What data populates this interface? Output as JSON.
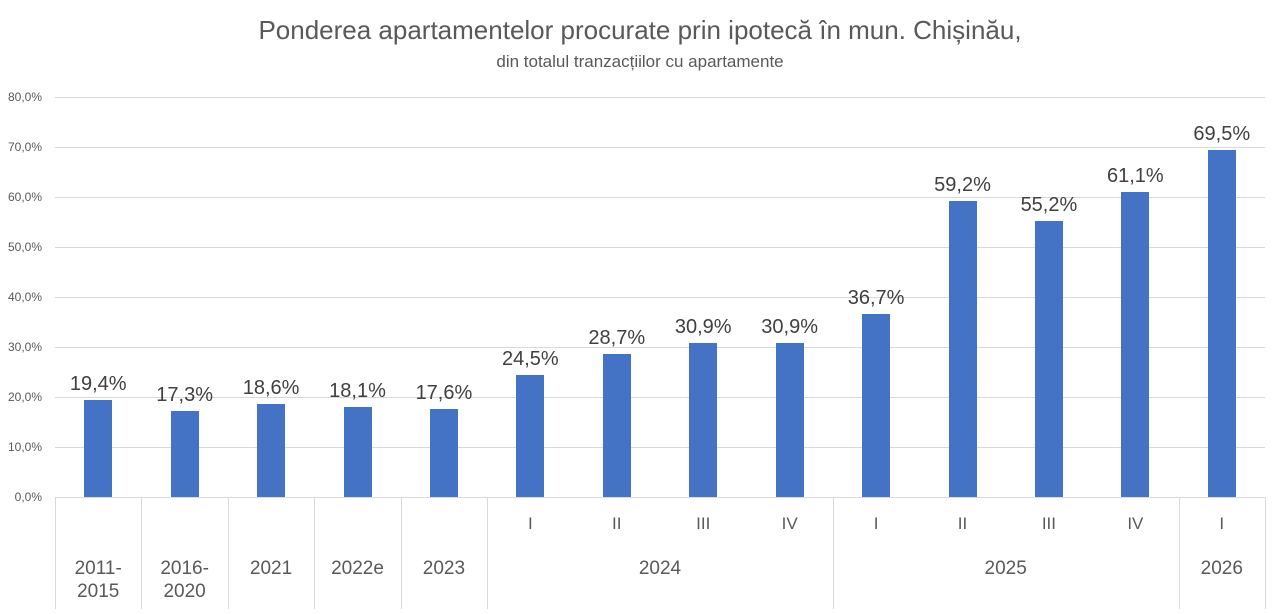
{
  "chart_data": {
    "type": "bar",
    "title": "Ponderea apartamentelor procurate prin ipotecă în mun. Chișinău,",
    "subtitle": "din totalul tranzacțiilor cu apartamente",
    "xlabel": "",
    "ylabel": "",
    "ylim": [
      0,
      80
    ],
    "grid": true,
    "legend_position": "none",
    "y_ticks": [
      {
        "value": 0,
        "label": "0,0%"
      },
      {
        "value": 10,
        "label": "10,0%"
      },
      {
        "value": 20,
        "label": "20,0%"
      },
      {
        "value": 30,
        "label": "30,0%"
      },
      {
        "value": 40,
        "label": "40,0%"
      },
      {
        "value": 50,
        "label": "50,0%"
      },
      {
        "value": 60,
        "label": "60,0%"
      },
      {
        "value": 70,
        "label": "70,0%"
      },
      {
        "value": 80,
        "label": "80,0%"
      }
    ],
    "bars": [
      {
        "period": "2011-2015",
        "quarter": "",
        "value": 19.4,
        "label": "19,4%"
      },
      {
        "period": "2016-2020",
        "quarter": "",
        "value": 17.3,
        "label": "17,3%"
      },
      {
        "period": "2021",
        "quarter": "",
        "value": 18.6,
        "label": "18,6%"
      },
      {
        "period": "2022e",
        "quarter": "",
        "value": 18.1,
        "label": "18,1%"
      },
      {
        "period": "2023",
        "quarter": "",
        "value": 17.6,
        "label": "17,6%"
      },
      {
        "period": "2024",
        "quarter": "I",
        "value": 24.5,
        "label": "24,5%"
      },
      {
        "period": "2024",
        "quarter": "II",
        "value": 28.7,
        "label": "28,7%"
      },
      {
        "period": "2024",
        "quarter": "III",
        "value": 30.9,
        "label": "30,9%"
      },
      {
        "period": "2024",
        "quarter": "IV",
        "value": 30.9,
        "label": "30,9%"
      },
      {
        "period": "2025",
        "quarter": "I",
        "value": 36.7,
        "label": "36,7%"
      },
      {
        "period": "2025",
        "quarter": "II",
        "value": 59.2,
        "label": "59,2%"
      },
      {
        "period": "2025",
        "quarter": "III",
        "value": 55.2,
        "label": "55,2%"
      },
      {
        "period": "2025",
        "quarter": "IV",
        "value": 61.1,
        "label": "61,1%"
      },
      {
        "period": "2026",
        "quarter": "I",
        "value": 69.5,
        "label": "69,5%"
      }
    ],
    "axis_groups": [
      {
        "label_lines": [
          "2011-",
          "2015"
        ],
        "span": 1
      },
      {
        "label_lines": [
          "2016-",
          "2020"
        ],
        "span": 1
      },
      {
        "label_lines": [
          "2021"
        ],
        "span": 1
      },
      {
        "label_lines": [
          "2022e"
        ],
        "span": 1
      },
      {
        "label_lines": [
          "2023"
        ],
        "span": 1
      },
      {
        "label_lines": [
          "2024"
        ],
        "span": 4
      },
      {
        "label_lines": [
          "2025"
        ],
        "span": 4
      },
      {
        "label_lines": [
          "2026"
        ],
        "span": 1
      }
    ],
    "colors": {
      "bar": "#4472C4",
      "title_text": "#595959",
      "axis_text": "#595959",
      "data_label_text": "#404040",
      "gridline": "#D9D9D9",
      "axis_line": "#D9D9D9",
      "background": "#FFFFFF"
    }
  }
}
